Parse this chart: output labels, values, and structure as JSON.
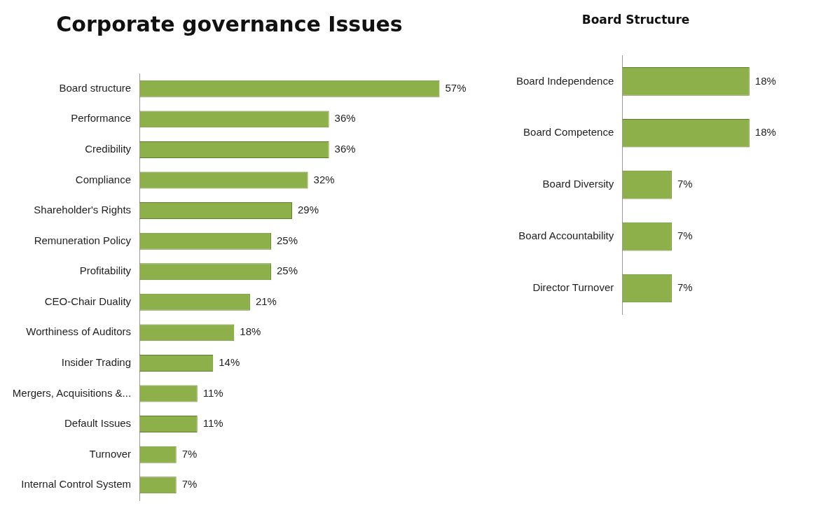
{
  "chart_data": [
    {
      "type": "bar",
      "orientation": "horizontal",
      "title": "Corporate governance Issues",
      "categories": [
        "Board structure",
        "Performance",
        "Credibility",
        "Compliance",
        "Shareholder's Rights",
        "Remuneration Policy",
        "Profitability",
        "CEO-Chair Duality",
        "Worthiness of Auditors",
        "Insider Trading",
        "Mergers, Acquisitions &...",
        "Default Issues",
        "Turnover",
        "Internal Control System"
      ],
      "values": [
        57,
        36,
        36,
        32,
        29,
        25,
        25,
        21,
        18,
        14,
        11,
        11,
        7,
        7
      ],
      "value_labels": [
        "57%",
        "36%",
        "36%",
        "32%",
        "29%",
        "25%",
        "25%",
        "21%",
        "18%",
        "14%",
        "11%",
        "11%",
        "7%",
        "7%"
      ],
      "color": "#8db04a"
    },
    {
      "type": "bar",
      "orientation": "horizontal",
      "title": "Board Structure",
      "categories": [
        "Board Independence",
        "Board Competence",
        "Board Diversity",
        "Board Accountability",
        "Director Turnover"
      ],
      "values": [
        18,
        18,
        7,
        7,
        7
      ],
      "value_labels": [
        "18%",
        "18%",
        "7%",
        "7%",
        "7%"
      ],
      "color": "#8db04a"
    }
  ]
}
